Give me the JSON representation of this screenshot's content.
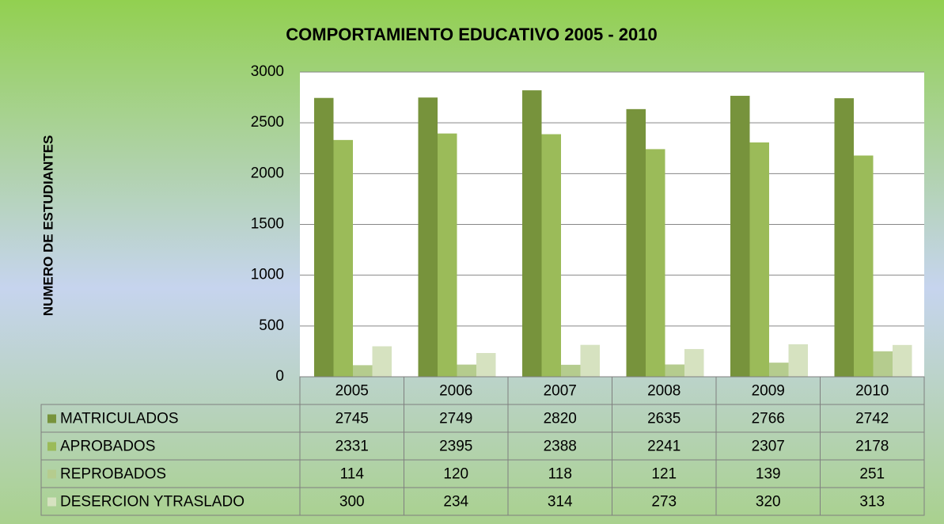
{
  "chart_data": {
    "type": "bar",
    "title": "COMPORTAMIENTO EDUCATIVO 2005 - 2010",
    "y_label": "NUMERO DE ESTUDIANTES",
    "categories": [
      "2005",
      "2006",
      "2007",
      "2008",
      "2009",
      "2010"
    ],
    "series": [
      {
        "name": "MATRICULADOS",
        "color": "#77933c",
        "values": [
          2745,
          2749,
          2820,
          2635,
          2766,
          2742
        ]
      },
      {
        "name": "APROBADOS",
        "color": "#9bbb59",
        "values": [
          2331,
          2395,
          2388,
          2241,
          2307,
          2178
        ]
      },
      {
        "name": "REPROBADOS",
        "color": "#b5cc8e",
        "values": [
          114,
          120,
          118,
          121,
          139,
          251
        ]
      },
      {
        "name": "DESERCION YTRASLADO",
        "color": "#d6e2c0",
        "values": [
          300,
          234,
          314,
          273,
          320,
          313
        ]
      }
    ],
    "ylim": [
      0,
      3000
    ],
    "yticks": [
      0,
      500,
      1000,
      1500,
      2000,
      2500,
      3000
    ],
    "grid": true
  }
}
